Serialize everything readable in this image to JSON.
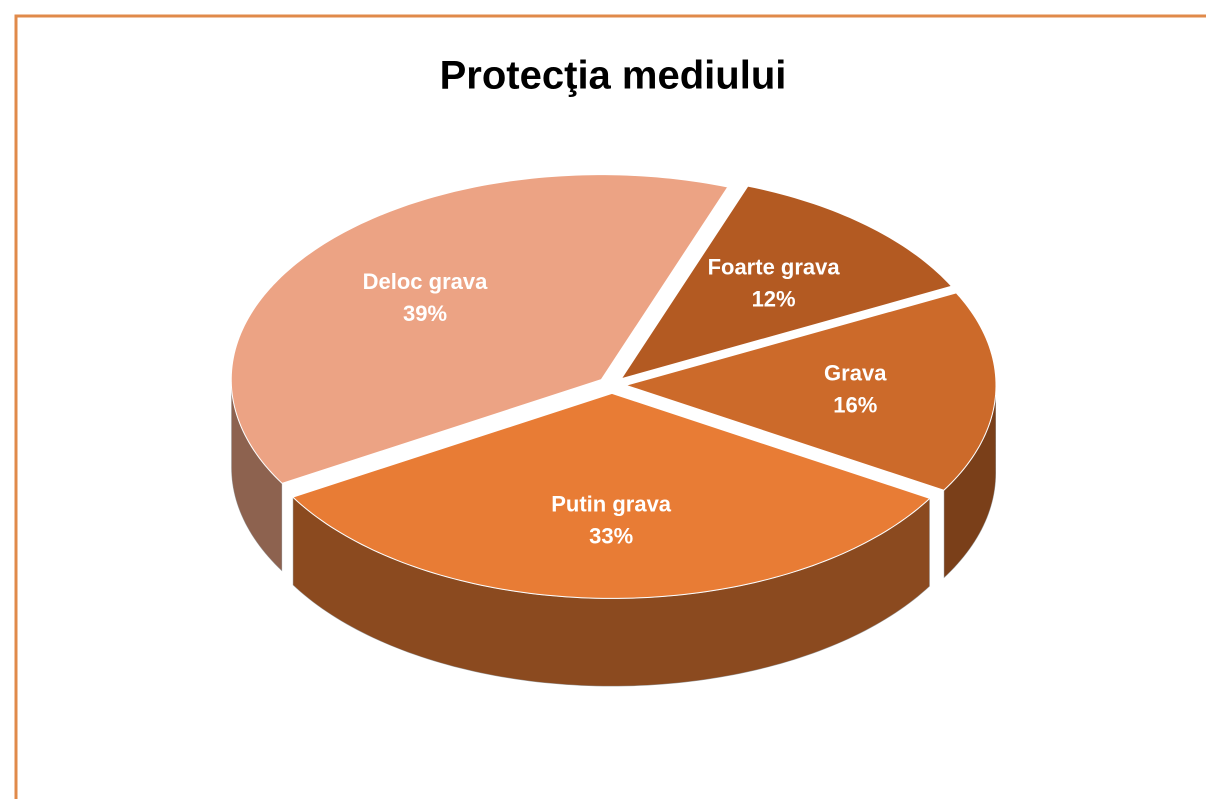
{
  "chart_data": {
    "type": "pie",
    "title": "Protecţia mediului",
    "categories": [
      "Foarte grava",
      "Grava",
      "Putin grava",
      "Deloc grava"
    ],
    "values": [
      12,
      16,
      33,
      39
    ],
    "value_labels": [
      "12%",
      "16%",
      "33%",
      "39%"
    ],
    "colors": [
      "#b35a22",
      "#cc6a2a",
      "#e87c35",
      "#eca384"
    ]
  }
}
